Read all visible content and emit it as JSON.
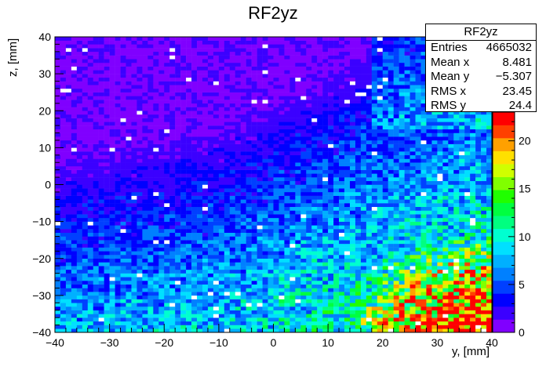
{
  "chart_data": {
    "type": "heatmap",
    "title": "RF2yz",
    "xlabel": "y, [mm]",
    "ylabel": "z, [mm]",
    "xlim": [
      -40,
      40
    ],
    "ylim": [
      -40,
      40
    ],
    "x_ticks": [
      "−40",
      "−30",
      "−20",
      "−10",
      "0",
      "10",
      "20",
      "30",
      "40"
    ],
    "y_ticks": [
      "−40",
      "−30",
      "−20",
      "−10",
      "0",
      "10",
      "20",
      "30",
      "40"
    ],
    "z_range": [
      0,
      23
    ],
    "z_ticks": [
      "0",
      "5",
      "10",
      "15",
      "20"
    ],
    "bins": {
      "nx": 80,
      "ny": 80
    },
    "colormap": [
      "#8000ff",
      "#3b00ff",
      "#0000ff",
      "#0040ff",
      "#0080ff",
      "#00b0ff",
      "#00e0ff",
      "#00ffd0",
      "#00ff80",
      "#00ff40",
      "#20ff00",
      "#80ff00",
      "#d0ff00",
      "#ffe000",
      "#ffa000",
      "#ff4000",
      "#ff0000"
    ],
    "stats": {
      "title": "RF2yz",
      "rows": [
        {
          "label": "Entries",
          "value": "4665032"
        },
        {
          "label": "Mean x",
          "value": "8.481"
        },
        {
          "label": "Mean y",
          "value": "−5.307"
        },
        {
          "label": "RMS x",
          "value": "23.45"
        },
        {
          "label": "RMS y",
          "value": "24.4"
        }
      ]
    },
    "grid": false
  }
}
